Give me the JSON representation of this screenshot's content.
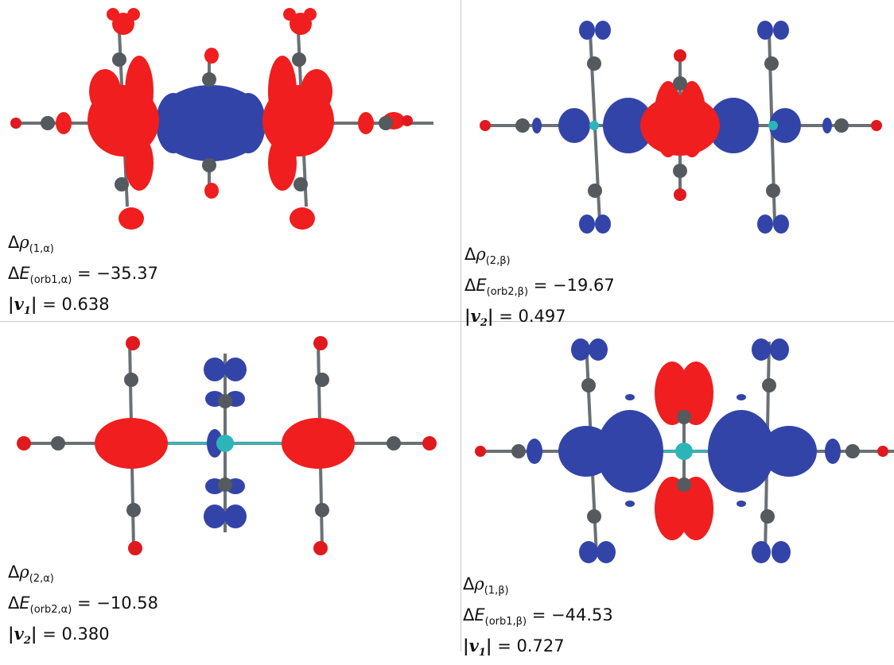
{
  "panels": [
    {
      "id": "p1",
      "caption": {
        "delta": "Δ",
        "rho": "ρ",
        "rho_sub": "(1,α)",
        "de_prefix": "Δ",
        "e": "E",
        "e_sub": "(orb1,α)",
        "de_value": "= −35.37",
        "v_left": "|",
        "v": "v",
        "v_sub": "1",
        "v_right": "|",
        "v_value": "= 0.638"
      }
    },
    {
      "id": "p2",
      "caption": {
        "delta": "Δ",
        "rho": "ρ",
        "rho_sub": "(2,β)",
        "de_prefix": "Δ",
        "e": "E",
        "e_sub": "(orb2,β)",
        "de_value": "= −19.67",
        "v_left": "|",
        "v": "v",
        "v_sub": "2",
        "v_right": "|",
        "v_value": "= 0.497"
      }
    },
    {
      "id": "p3",
      "caption": {
        "delta": "Δ",
        "rho": "ρ",
        "rho_sub": "(2,α)",
        "de_prefix": "Δ",
        "e": "E",
        "e_sub": "(orb2,α)",
        "de_value": "= −10.58",
        "v_left": "|",
        "v": "v",
        "v_sub": "2",
        "v_right": "|",
        "v_value": "= 0.380"
      }
    },
    {
      "id": "p4",
      "caption": {
        "delta": "Δ",
        "rho": "ρ",
        "rho_sub": "(1,β)",
        "de_prefix": "Δ",
        "e": "E",
        "e_sub": "(orb1,β)",
        "de_value": "= −44.53",
        "v_left": "|",
        "v": "v",
        "v_sub": "1",
        "v_right": "|",
        "v_value": "= 0.727"
      }
    }
  ],
  "colors": {
    "density_positive": "#f01e1e",
    "density_negative": "#3344a8",
    "carbon": "#555a5e",
    "oxygen": "#e0191e",
    "metal": "#2bb5b8",
    "bond": "#6b7074",
    "metal_bond": "#35b9bd"
  }
}
